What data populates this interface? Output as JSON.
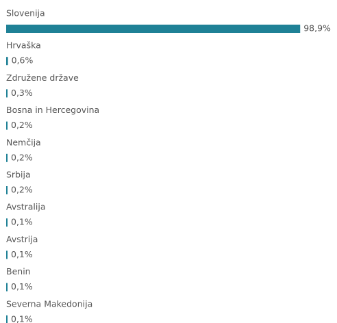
{
  "chart_data": {
    "type": "bar",
    "orientation": "horizontal",
    "color": "#1f8196",
    "categories": [
      "Slovenija",
      "Hrvaška",
      "Združene države",
      "Bosna in Hercegovina",
      "Nemčija",
      "Srbija",
      "Avstralija",
      "Avstrija",
      "Benin",
      "Severna Makedonija"
    ],
    "values": [
      98.9,
      0.6,
      0.3,
      0.2,
      0.2,
      0.2,
      0.1,
      0.1,
      0.1,
      0.1
    ],
    "value_labels": [
      "98,9%",
      "0,6%",
      "0,3%",
      "0,2%",
      "0,2%",
      "0,2%",
      "0,1%",
      "0,1%",
      "0,1%",
      "0,1%"
    ]
  }
}
